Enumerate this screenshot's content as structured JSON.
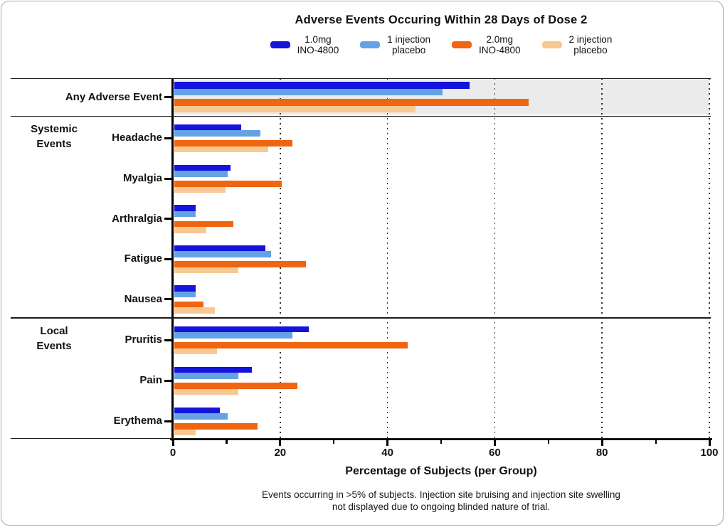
{
  "title": "Adverse Events Occuring Within 28 Days of Dose 2",
  "legend": {
    "items": [
      {
        "label": "1.0mg\nINO-4800",
        "color": "#1414dc"
      },
      {
        "label": "1 injection\nplacebo",
        "color": "#64a2e4"
      },
      {
        "label": "2.0mg\nINO-4800",
        "color": "#f0650f"
      },
      {
        "label": "2 injection\nplacebo",
        "color": "#f9c892"
      }
    ]
  },
  "chart_data": {
    "type": "bar",
    "orientation": "horizontal",
    "title": "Adverse Events Occuring Within 28 Days of Dose 2",
    "xlabel": "Percentage of Subjects (per Group)",
    "xlim": [
      0,
      100
    ],
    "xticks": [
      0,
      20,
      40,
      60,
      80,
      100
    ],
    "minor_ticks": [
      10,
      30,
      50,
      70,
      90
    ],
    "grid": "dotted-vertical",
    "legend_position": "top",
    "series_names": [
      "1.0mg INO-4800",
      "1 injection placebo",
      "2.0mg INO-4800",
      "2 injection placebo"
    ],
    "series_colors": [
      "#1414dc",
      "#64a2e4",
      "#f0650f",
      "#f9c892"
    ],
    "groups": [
      {
        "label": "Any Adverse Event",
        "section": "",
        "highlight": true,
        "values": [
          55,
          50,
          66,
          45
        ]
      },
      {
        "label": "Headache",
        "section": "Systemic\nEvents",
        "highlight": false,
        "values": [
          12.5,
          16,
          22,
          17.5
        ]
      },
      {
        "label": "Myalgia",
        "section": "",
        "highlight": false,
        "values": [
          10.5,
          10,
          20,
          9.5
        ]
      },
      {
        "label": "Arthralgia",
        "section": "",
        "highlight": false,
        "values": [
          4,
          4,
          11,
          6
        ]
      },
      {
        "label": "Fatigue",
        "section": "",
        "highlight": false,
        "values": [
          17,
          18,
          24.5,
          12
        ]
      },
      {
        "label": "Nausea",
        "section": "",
        "highlight": false,
        "values": [
          4,
          4,
          5.5,
          7.5
        ]
      },
      {
        "label": "Pruritis",
        "section": "Local\nEvents",
        "highlight": false,
        "values": [
          25,
          22,
          43.5,
          8
        ]
      },
      {
        "label": "Pain",
        "section": "",
        "highlight": false,
        "values": [
          14.5,
          12,
          23,
          12
        ]
      },
      {
        "label": "Erythema",
        "section": "",
        "highlight": false,
        "values": [
          8.5,
          10,
          15.5,
          4
        ]
      }
    ],
    "footnote": [
      "Events occurring in >5% of subjects. Injection site bruising and injection site swelling",
      "not displayed due to ongoing blinded nature of trial."
    ],
    "highlight_band_color": "#ebebeb"
  },
  "x_axis_title": "Percentage of Subjects (per Group)",
  "footnote_line1": "Events occurring in >5% of subjects. Injection site bruising and injection site swelling",
  "footnote_line2": "not displayed due to ongoing blinded nature of trial."
}
